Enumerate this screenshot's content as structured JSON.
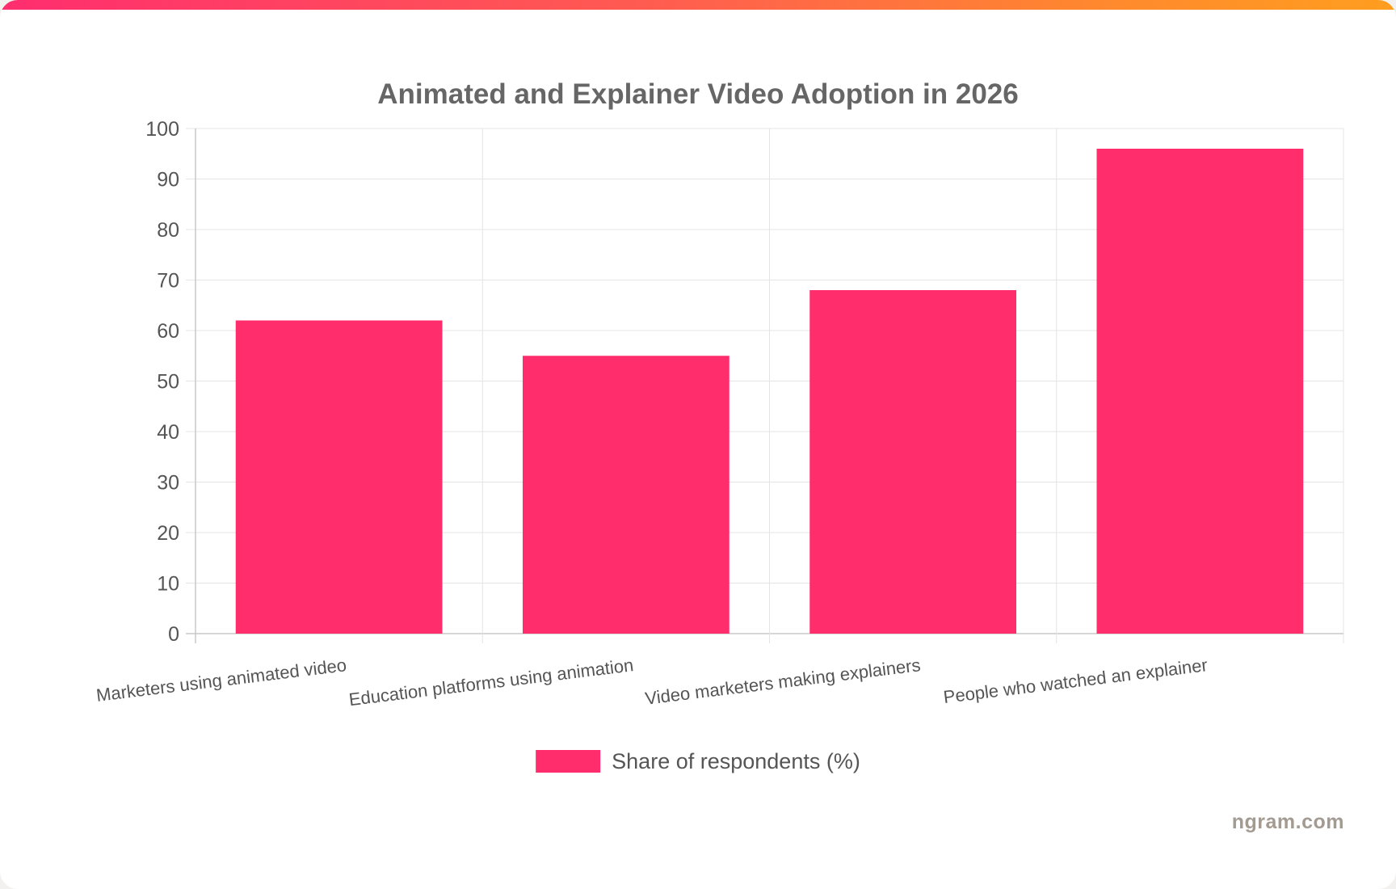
{
  "brand": {
    "watermark": "ngram.com",
    "gradient_colors": [
      "#ff2d6f",
      "#ff9e1f"
    ]
  },
  "chart_data": {
    "type": "bar",
    "title": "Animated and Explainer Video Adoption in 2026",
    "categories": [
      "Marketers using animated video",
      "Education platforms using animation",
      "Video marketers making explainers",
      "People who watched an explainer"
    ],
    "series": [
      {
        "name": "Share of respondents (%)",
        "values": [
          62,
          55,
          68,
          96
        ],
        "color": "#ff2d6b"
      }
    ],
    "ylim": [
      0,
      100
    ],
    "yticks": [
      0,
      10,
      20,
      30,
      40,
      50,
      60,
      70,
      80,
      90,
      100
    ],
    "grid": true,
    "legend_position": "bottom"
  }
}
